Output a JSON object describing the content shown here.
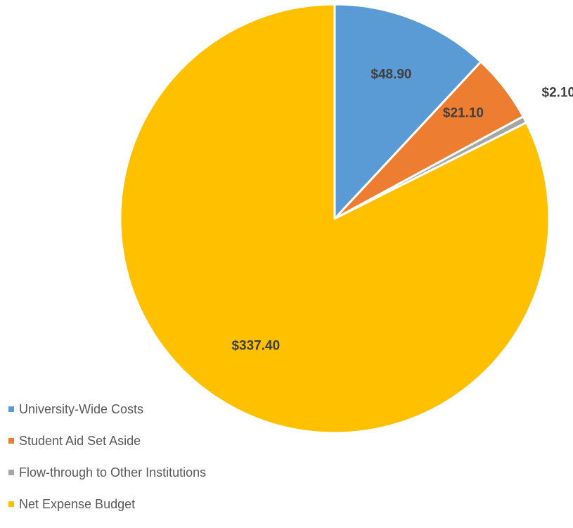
{
  "chart_data": {
    "type": "pie",
    "title": "",
    "start_angle_deg": 0,
    "direction": "clockwise",
    "legend_position": "bottom-left",
    "categories": [
      "University-Wide Costs",
      "Student Aid Set Aside",
      "Flow-through to Other Institutions",
      "Net Expense Budget"
    ],
    "values": [
      48.9,
      21.1,
      2.1,
      337.4
    ],
    "data_labels": [
      "$48.90",
      "$21.10",
      "$2.10",
      "$337.40"
    ],
    "colors": [
      "#5B9BD5",
      "#ED7D31",
      "#A5A5A5",
      "#FFC000"
    ]
  }
}
